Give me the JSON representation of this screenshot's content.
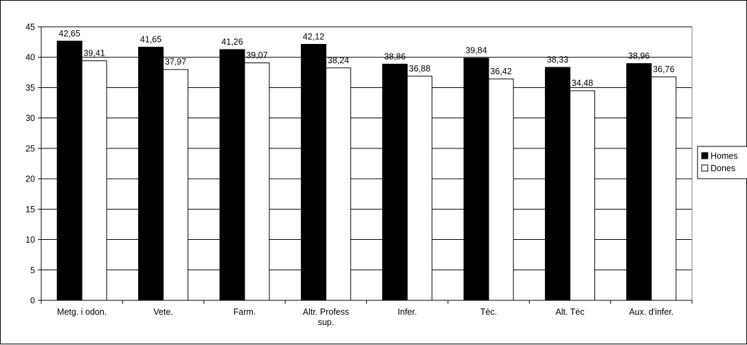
{
  "chart_data": {
    "type": "bar",
    "categories": [
      "Metg. i odon.",
      "Vete.",
      "Farm.",
      "Altr. Profess sup.",
      "Infer.",
      "Tèc.",
      "Alt. Tèc",
      "Aux. d'infer."
    ],
    "category_lines": [
      [
        "Metg. i odon."
      ],
      [
        "Vete."
      ],
      [
        "Farm."
      ],
      [
        "Altr. Profess",
        "sup."
      ],
      [
        "Infer."
      ],
      [
        "Tèc."
      ],
      [
        "Alt. Tèc"
      ],
      [
        "Aux. d'infer."
      ]
    ],
    "series": [
      {
        "name": "Homes",
        "values": [
          42.65,
          41.65,
          41.26,
          42.12,
          38.86,
          39.84,
          38.33,
          38.96
        ],
        "labels": [
          "42,65",
          "41,65",
          "41,26",
          "42,12",
          "38,86",
          "39,84",
          "38,33",
          "38,96"
        ],
        "color": "#000000"
      },
      {
        "name": "Dones",
        "values": [
          39.41,
          37.97,
          39.07,
          38.24,
          36.88,
          36.42,
          34.48,
          36.76
        ],
        "labels": [
          "39,41",
          "37,97",
          "39,07",
          "38,24",
          "36,88",
          "36,42",
          "34,48",
          "36,76"
        ],
        "color": "#ffffff"
      }
    ],
    "ylim": [
      0,
      45
    ],
    "yticks": [
      0,
      5,
      10,
      15,
      20,
      25,
      30,
      35,
      40,
      45
    ],
    "grid": true,
    "legend_position": "right",
    "title": "",
    "xlabel": "",
    "ylabel": ""
  }
}
